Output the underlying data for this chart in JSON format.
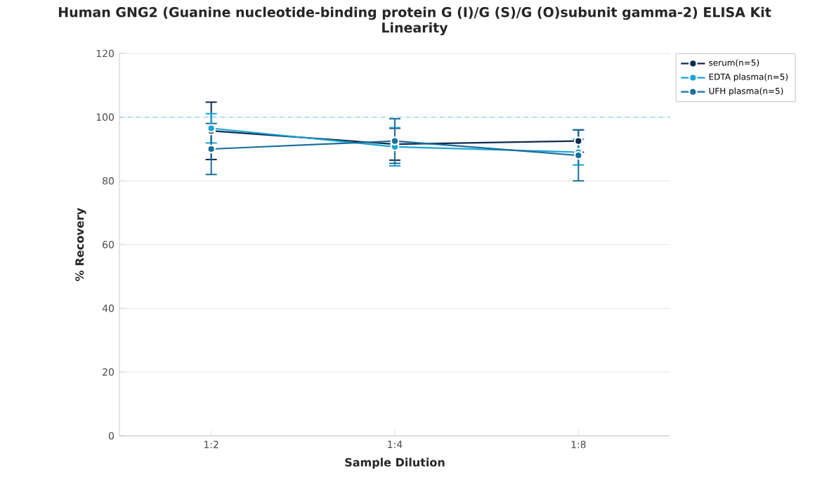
{
  "chart_data": {
    "type": "line",
    "title": "Human GNG2 (Guanine nucleotide-binding protein G (I)/G (S)/G (O)subunit gamma-2) ELISA Kit",
    "subtitle": "Linearity",
    "xlabel": "Sample Dilution",
    "ylabel": "% Recovery",
    "categories": [
      "1:2",
      "1:4",
      "1:8"
    ],
    "series": [
      {
        "name": "serum(n=5)",
        "color": "#0d2b4e",
        "values": [
          95.7,
          91.5,
          92.5
        ],
        "errors": [
          9,
          5,
          3.5
        ]
      },
      {
        "name": "EDTA plasma(n=5)",
        "color": "#1aa3d4",
        "values": [
          96.5,
          90.7,
          89
        ],
        "errors": [
          4.6,
          6,
          4
        ]
      },
      {
        "name": "UFH plasma(n=5)",
        "color": "#1a6e99",
        "values": [
          90,
          92.5,
          88
        ],
        "errors": [
          8,
          7,
          8
        ]
      }
    ],
    "ylim": [
      0,
      120
    ],
    "yticks": [
      0,
      20,
      40,
      60,
      80,
      100,
      120
    ],
    "ref_lines": [
      {
        "axis": "y",
        "value": 100,
        "color": "#7fd0e8",
        "line_style": "dashed"
      }
    ],
    "grid": "y",
    "legend": "top right",
    "marker": "circle",
    "line_style": "solid"
  }
}
